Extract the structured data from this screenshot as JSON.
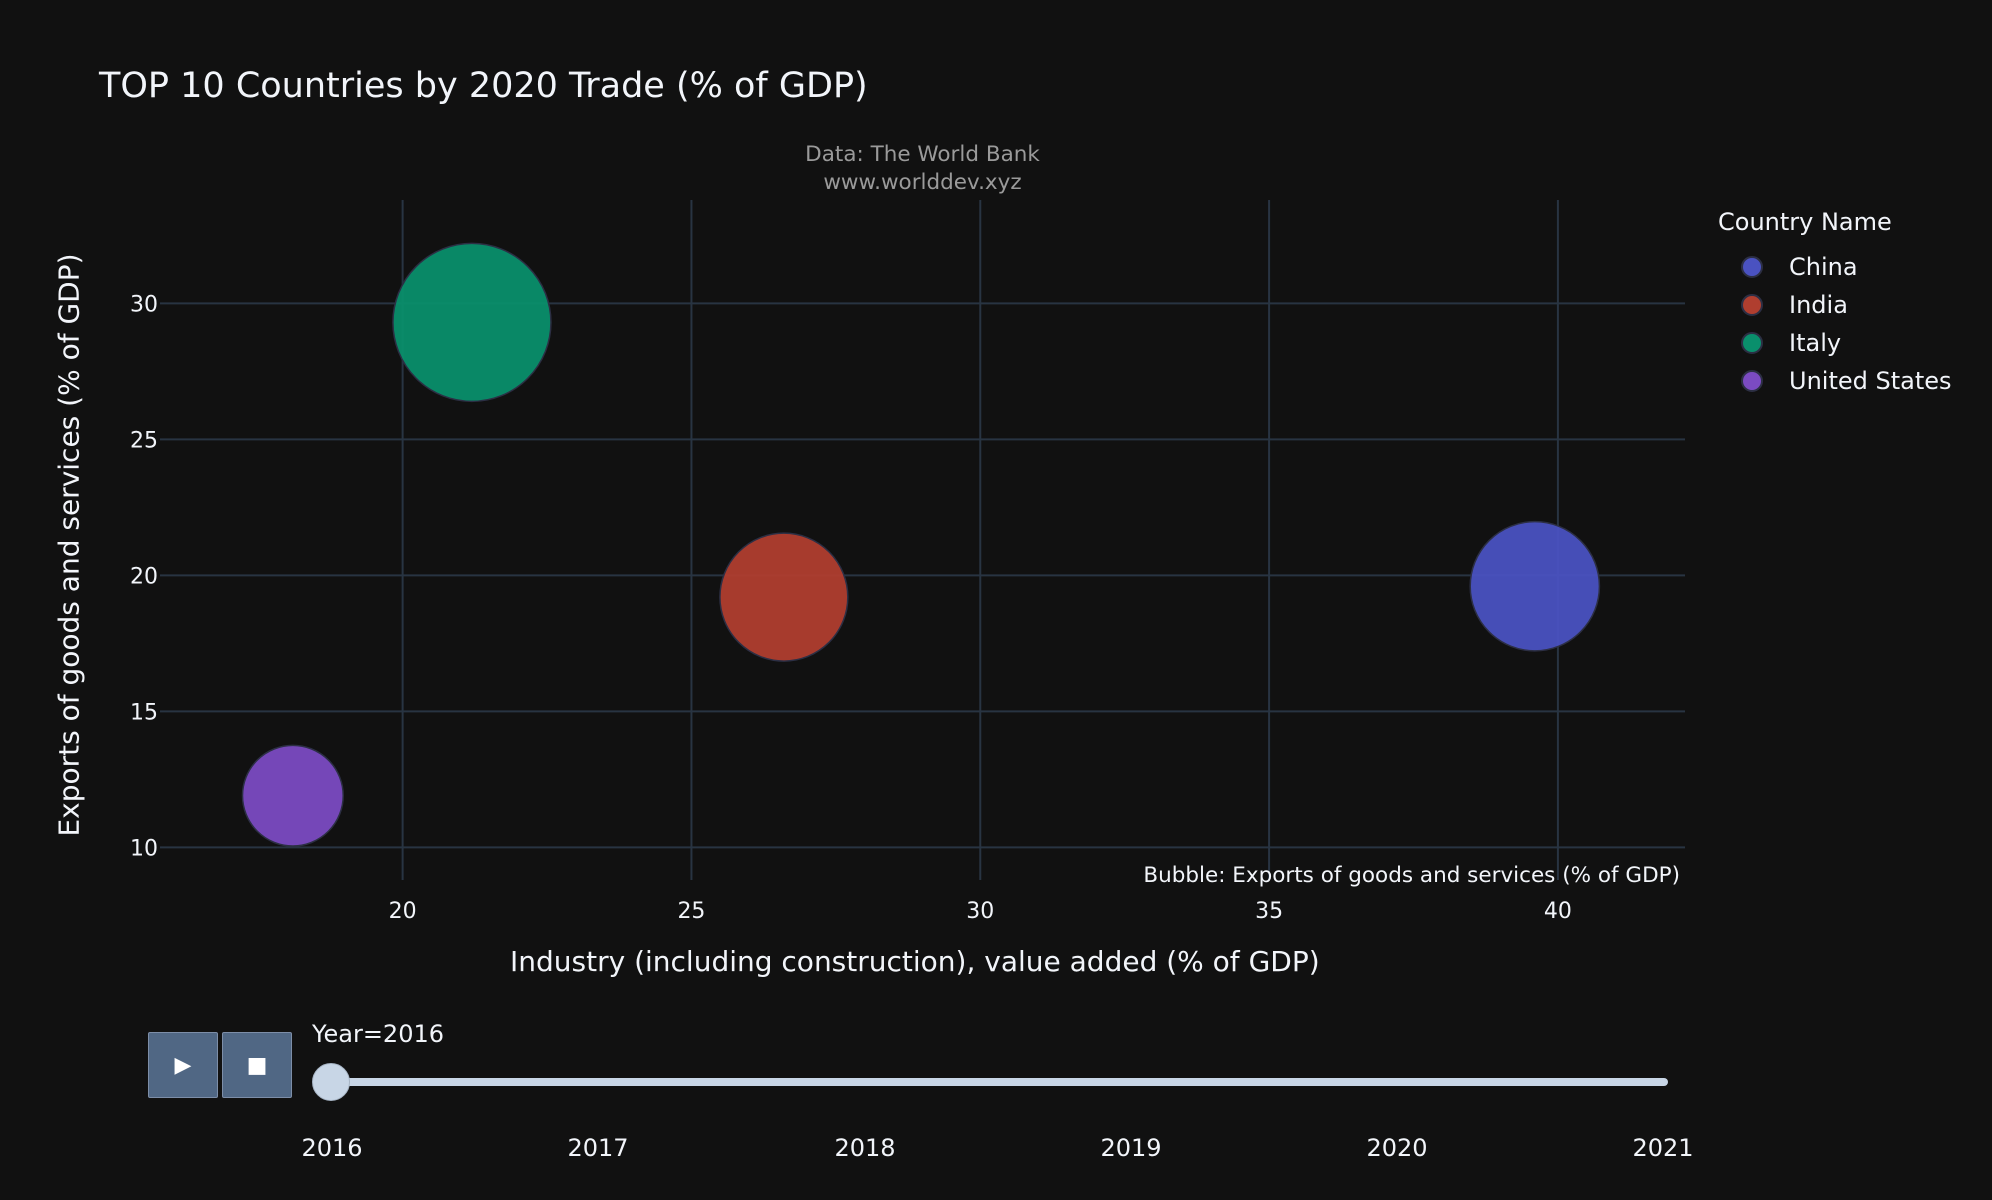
{
  "title": "TOP 10 Countries by 2020 Trade (% of GDP)",
  "source": {
    "line1": "Data: The World Bank",
    "line2": "www.worlddev.xyz"
  },
  "bubble_note": "Bubble: Exports of goods and services (% of GDP)",
  "legend": {
    "title": "Country Name",
    "items": [
      {
        "label": "China",
        "color": "#4a52c1"
      },
      {
        "label": "India",
        "color": "#b03e2f"
      },
      {
        "label": "Italy",
        "color": "#0a8f6c"
      },
      {
        "label": "United States",
        "color": "#7b4bc2"
      }
    ]
  },
  "controls": {
    "play_icon": "▶",
    "stop_icon": "■",
    "current_year_label": "Year=2016",
    "years": [
      "2016",
      "2017",
      "2018",
      "2019",
      "2020",
      "2021"
    ],
    "current_year_fraction": 0
  },
  "chart_data": {
    "type": "scatter",
    "title": "TOP 10 Countries by 2020 Trade (% of GDP)",
    "xlabel": "Industry (including construction), value added (% of GDP)",
    "ylabel": "Exports of goods and services (% of GDP)",
    "xlim": [
      15.8,
      42.2
    ],
    "ylim": [
      8.8,
      33.8
    ],
    "x_ticks": [
      20,
      25,
      30,
      35,
      40
    ],
    "y_ticks": [
      10,
      15,
      20,
      25,
      30
    ],
    "grid": true,
    "legend_position": "top-right",
    "size_variable": "Exports of goods and services (% of GDP)",
    "series": [
      {
        "name": "China",
        "color": "#4a52c1",
        "points": [
          {
            "x": 39.6,
            "y": 19.6,
            "size": 19.6
          }
        ]
      },
      {
        "name": "India",
        "color": "#b03e2f",
        "points": [
          {
            "x": 26.6,
            "y": 19.2,
            "size": 19.2
          }
        ]
      },
      {
        "name": "Italy",
        "color": "#0a8f6c",
        "points": [
          {
            "x": 21.2,
            "y": 29.3,
            "size": 29.3
          }
        ]
      },
      {
        "name": "United States",
        "color": "#7b4bc2",
        "points": [
          {
            "x": 18.1,
            "y": 11.9,
            "size": 11.9
          }
        ]
      }
    ]
  }
}
